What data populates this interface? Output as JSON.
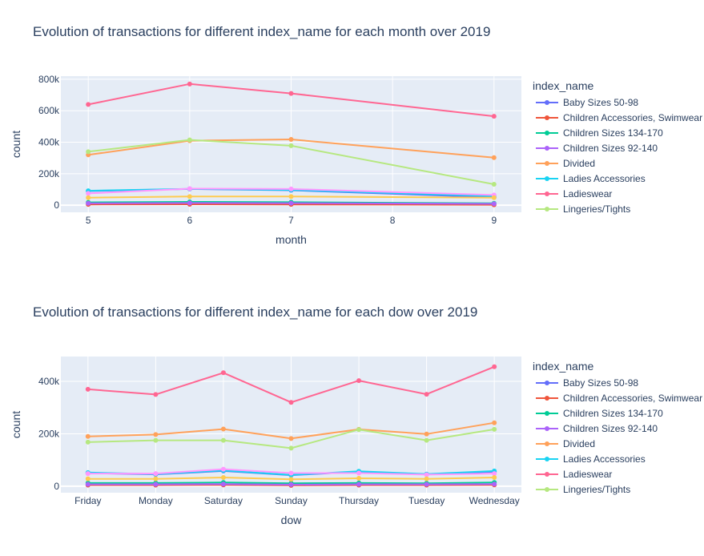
{
  "chart_data": [
    {
      "type": "line",
      "title": "Evolution of transactions for different index_name for each month over 2019",
      "xlabel": "month",
      "ylabel": "count",
      "x": [
        5,
        6,
        7,
        8,
        9
      ],
      "x_ticks": [
        "5",
        "6",
        "7",
        "8",
        "9"
      ],
      "y_ticks": [
        0,
        200000,
        400000,
        600000,
        800000
      ],
      "y_tick_labels": [
        "0",
        "200k",
        "400k",
        "600k",
        "800k"
      ],
      "ylim": [
        -45000,
        820000
      ],
      "legend_title": "index_name",
      "legend_position": "right",
      "grid": true,
      "series": [
        {
          "name": "Baby Sizes 50-98",
          "color": "#636efa",
          "x": [
            5,
            6,
            7,
            9
          ],
          "values": [
            90000,
            103000,
            95000,
            50000
          ]
        },
        {
          "name": "Children Accessories, Swimwear",
          "color": "#EF553B",
          "x": [
            5,
            6,
            7,
            9
          ],
          "values": [
            5000,
            6000,
            5000,
            3000
          ]
        },
        {
          "name": "Children Sizes 134-170",
          "color": "#00cc96",
          "x": [
            5,
            6,
            7,
            9
          ],
          "values": [
            18000,
            21000,
            19000,
            12000
          ]
        },
        {
          "name": "Children Sizes 92-140",
          "color": "#ab63fa",
          "x": [
            5,
            6,
            7,
            9
          ],
          "values": [
            12000,
            14000,
            13000,
            9000
          ]
        },
        {
          "name": "Divided",
          "color": "#FFA15A",
          "x": [
            5,
            6,
            7,
            9
          ],
          "values": [
            320000,
            410000,
            418000,
            302000
          ]
        },
        {
          "name": "Ladies Accessories",
          "color": "#19d3f3",
          "x": [
            5,
            6,
            7,
            9
          ],
          "values": [
            92000,
            104000,
            97000,
            58000
          ]
        },
        {
          "name": "Ladieswear",
          "color": "#FF6692",
          "x": [
            5,
            6,
            7,
            9
          ],
          "values": [
            640000,
            770000,
            710000,
            565000
          ]
        },
        {
          "name": "Lingeries/Tights",
          "color": "#B6E880",
          "x": [
            5,
            6,
            7,
            9
          ],
          "values": [
            340000,
            415000,
            378000,
            133000
          ]
        },
        {
          "name": "",
          "color": "#FF97FF",
          "x": [
            5,
            6,
            7,
            9
          ],
          "values": [
            75000,
            105000,
            103000,
            65000
          ]
        },
        {
          "name": "",
          "color": "#FECB52",
          "x": [
            5,
            6,
            7,
            9
          ],
          "values": [
            48000,
            55000,
            55000,
            48000
          ]
        }
      ]
    },
    {
      "type": "line",
      "title": "Evolution of transactions for different index_name for each dow over 2019",
      "xlabel": "dow",
      "ylabel": "count",
      "categories": [
        "Friday",
        "Monday",
        "Saturday",
        "Sunday",
        "Thursday",
        "Tuesday",
        "Wednesday"
      ],
      "y_ticks": [
        0,
        200000,
        400000
      ],
      "y_tick_labels": [
        "0",
        "200k",
        "400k"
      ],
      "ylim": [
        -25000,
        495000
      ],
      "legend_title": "index_name",
      "legend_position": "right",
      "grid": true,
      "series": [
        {
          "name": "Baby Sizes 50-98",
          "color": "#636efa",
          "values": [
            50000,
            45000,
            58000,
            42000,
            55000,
            45000,
            55000
          ]
        },
        {
          "name": "Children Accessories, Swimwear",
          "color": "#EF553B",
          "values": [
            4000,
            4000,
            5000,
            3000,
            4000,
            4000,
            5000
          ]
        },
        {
          "name": "Children Sizes 134-170",
          "color": "#00cc96",
          "values": [
            12000,
            12000,
            14000,
            11000,
            12000,
            11000,
            14000
          ]
        },
        {
          "name": "Children Sizes 92-140",
          "color": "#ab63fa",
          "values": [
            7000,
            7000,
            8000,
            6000,
            7000,
            7000,
            8000
          ]
        },
        {
          "name": "Divided",
          "color": "#FFA15A",
          "values": [
            190000,
            197000,
            218000,
            182000,
            217000,
            199000,
            242000
          ]
        },
        {
          "name": "Ladies Accessories",
          "color": "#19d3f3",
          "values": [
            52000,
            46000,
            60000,
            43000,
            57000,
            46000,
            58000
          ]
        },
        {
          "name": "Ladieswear",
          "color": "#FF6692",
          "values": [
            370000,
            350000,
            433000,
            320000,
            403000,
            351000,
            456000
          ]
        },
        {
          "name": "Lingeries/Tights",
          "color": "#B6E880",
          "values": [
            168000,
            175000,
            175000,
            145000,
            216000,
            175000,
            217000
          ]
        },
        {
          "name": "",
          "color": "#FF97FF",
          "values": [
            48000,
            48000,
            65000,
            50000,
            50000,
            44000,
            48000
          ]
        },
        {
          "name": "",
          "color": "#FECB52",
          "values": [
            28000,
            28000,
            33000,
            26000,
            30000,
            28000,
            33000
          ]
        }
      ]
    }
  ]
}
